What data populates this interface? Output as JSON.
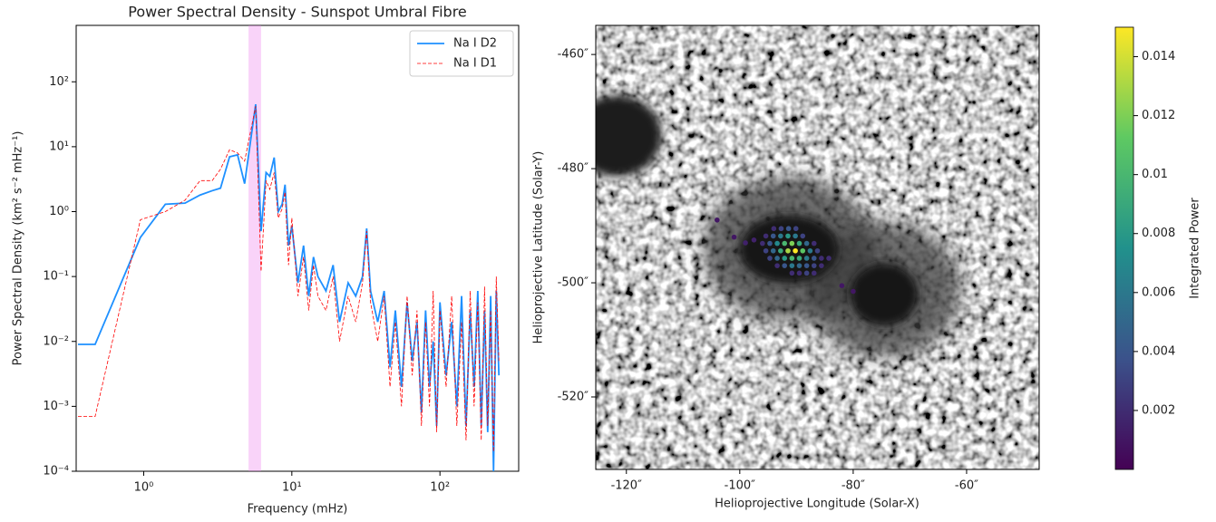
{
  "chart_data": [
    {
      "type": "line",
      "title": "Power Spectral Density - Sunspot Umbral Fibre",
      "xlabel": "Frequency (mHz)",
      "ylabel": "Power Spectral Density (km² s⁻² mHz⁻¹)",
      "xscale": "log",
      "yscale": "log",
      "xlim": [
        0.35,
        340
      ],
      "ylim": [
        0.0001,
        740
      ],
      "xticks": [
        {
          "value": 1,
          "label": "10⁰"
        },
        {
          "value": 10,
          "label": "10¹"
        },
        {
          "value": 100,
          "label": "10²"
        }
      ],
      "yticks": [
        {
          "value": 0.0001,
          "label": "10⁻⁴"
        },
        {
          "value": 0.001,
          "label": "10⁻³"
        },
        {
          "value": 0.01,
          "label": "10⁻²"
        },
        {
          "value": 0.1,
          "label": "10⁻¹"
        },
        {
          "value": 1,
          "label": "10⁰"
        },
        {
          "value": 10,
          "label": "10¹"
        },
        {
          "value": 100,
          "label": "10²"
        }
      ],
      "span": [
        5.1,
        6.2
      ],
      "span_color": "#ee82ee",
      "legend": "upper right",
      "x": [
        0.36,
        0.47,
        0.95,
        1.4,
        1.9,
        2.4,
        2.9,
        3.3,
        3.8,
        4.3,
        4.8,
        5.7,
        6.2,
        6.7,
        7.1,
        7.6,
        8.1,
        8.6,
        9.0,
        9.5,
        10,
        11,
        12,
        13,
        14,
        15,
        17,
        19,
        21,
        24,
        27,
        30,
        32,
        34,
        38,
        42,
        46,
        50,
        55,
        60,
        65,
        70,
        75,
        80,
        85,
        90,
        95,
        100,
        110,
        120,
        130,
        140,
        150,
        160,
        170,
        180,
        190,
        200,
        210,
        220,
        230,
        240,
        250
      ],
      "series": [
        {
          "name": "Na I D2",
          "color": "#1e90ff",
          "linestyle": "solid",
          "values": [
            0.009,
            0.009,
            0.4,
            1.3,
            1.35,
            1.8,
            2.1,
            2.3,
            7,
            7.5,
            2.7,
            45,
            0.5,
            4,
            3.5,
            6.8,
            1.0,
            1.3,
            2.6,
            0.3,
            0.6,
            0.08,
            0.3,
            0.05,
            0.2,
            0.1,
            0.06,
            0.15,
            0.02,
            0.08,
            0.05,
            0.1,
            0.55,
            0.06,
            0.02,
            0.06,
            0.004,
            0.03,
            0.002,
            0.04,
            0.005,
            0.02,
            0.0008,
            0.03,
            0.002,
            0.01,
            0.0005,
            0.04,
            0.003,
            0.02,
            0.001,
            0.05,
            0.0005,
            0.03,
            0.002,
            0.06,
            0.0005,
            0.03,
            0.0004,
            0.05,
            0.0001,
            0.06,
            0.003
          ]
        },
        {
          "name": "Na I D1",
          "color": "#ff0000",
          "linestyle": "dashed",
          "values": [
            0.0007,
            0.0007,
            0.75,
            1.0,
            1.5,
            3,
            3,
            4.5,
            9,
            8,
            6,
            42,
            0.12,
            3,
            2.2,
            4,
            0.8,
            1.1,
            2.0,
            0.15,
            0.8,
            0.05,
            0.2,
            0.03,
            0.15,
            0.05,
            0.03,
            0.1,
            0.01,
            0.05,
            0.02,
            0.08,
            0.5,
            0.04,
            0.01,
            0.05,
            0.002,
            0.02,
            0.001,
            0.05,
            0.003,
            0.03,
            0.0005,
            0.02,
            0.001,
            0.06,
            0.0004,
            0.03,
            0.002,
            0.05,
            0.0005,
            0.02,
            0.0003,
            0.06,
            0.001,
            0.04,
            0.0003,
            0.07,
            0.0005,
            0.03,
            0.0002,
            0.1,
            0.005
          ]
        }
      ]
    },
    {
      "type": "scatter",
      "xlabel": "Helioprojective Longitude (Solar-X)",
      "ylabel": "Helioprojective Latitude (Solar-Y)",
      "xlim": [
        -125.4,
        -47.2
      ],
      "ylim": [
        -532.7,
        -454.9
      ],
      "xticks": [
        {
          "value": -120,
          "label": "-120″"
        },
        {
          "value": -100,
          "label": "-100″"
        },
        {
          "value": -80,
          "label": "-80″"
        },
        {
          "value": -60,
          "label": "-60″"
        }
      ],
      "yticks": [
        {
          "value": -460,
          "label": "-460″"
        },
        {
          "value": -480,
          "label": "-480″"
        },
        {
          "value": -500,
          "label": "-500″"
        },
        {
          "value": -520,
          "label": "-520″"
        }
      ],
      "colormap": "viridis",
      "colorbar": {
        "label": "Integrated Power",
        "lim": [
          0,
          0.015
        ],
        "ticks": [
          0.002,
          0.004,
          0.006,
          0.008,
          0.01,
          0.012,
          0.014
        ]
      },
      "x": [
        -94,
        -92.7,
        -91.4,
        -90.1,
        -95.4,
        -94.1,
        -92.8,
        -91.5,
        -90.2,
        -88.9,
        -96,
        -94.7,
        -93.4,
        -92.1,
        -90.8,
        -89.5,
        -88.2,
        -86.9,
        -95.4,
        -94.1,
        -92.8,
        -91.5,
        -90.2,
        -88.9,
        -87.6,
        -86.3,
        -94.7,
        -93.4,
        -92.1,
        -90.8,
        -89.5,
        -88.2,
        -86.9,
        -85.6,
        -84.3,
        -93.4,
        -92.1,
        -90.8,
        -89.5,
        -88.2,
        -86.9,
        -85.6,
        -90.8,
        -89.5,
        -88.2,
        -86.9,
        -104,
        -101,
        -99,
        -97.5,
        -80,
        -82
      ],
      "y": [
        -490.5,
        -490.5,
        -490.5,
        -490.5,
        -491.8,
        -491.8,
        -491.8,
        -491.8,
        -491.8,
        -491.8,
        -493.1,
        -493.1,
        -493.1,
        -493.1,
        -493.1,
        -493.1,
        -493.1,
        -493.1,
        -494.4,
        -494.4,
        -494.4,
        -494.4,
        -494.4,
        -494.4,
        -494.4,
        -494.4,
        -495.7,
        -495.7,
        -495.7,
        -495.7,
        -495.7,
        -495.7,
        -495.7,
        -495.7,
        -495.7,
        -497.0,
        -497.0,
        -497.0,
        -497.0,
        -497.0,
        -497.0,
        -497.0,
        -498.3,
        -498.3,
        -498.3,
        -498.3,
        -489,
        -492,
        -493,
        -492.5,
        -501.5,
        -500.5
      ],
      "values": [
        0.002,
        0.003,
        0.004,
        0.003,
        0.002,
        0.004,
        0.006,
        0.008,
        0.006,
        0.003,
        0.002,
        0.004,
        0.007,
        0.01,
        0.012,
        0.009,
        0.005,
        0.002,
        0.003,
        0.005,
        0.009,
        0.013,
        0.015,
        0.011,
        0.006,
        0.003,
        0.003,
        0.005,
        0.008,
        0.01,
        0.009,
        0.006,
        0.004,
        0.002,
        0.002,
        0.002,
        0.004,
        0.006,
        0.005,
        0.004,
        0.003,
        0.002,
        0.002,
        0.002,
        0.003,
        0.002,
        0.001,
        0.001,
        0.0015,
        0.0015,
        0.001,
        0.001
      ]
    }
  ]
}
